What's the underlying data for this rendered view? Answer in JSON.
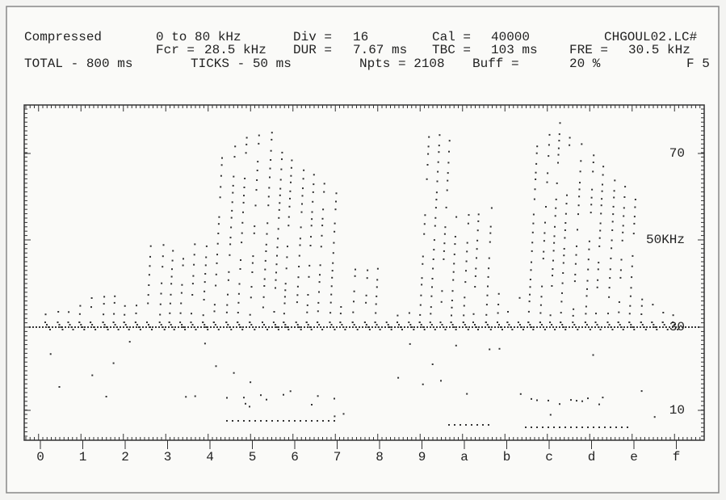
{
  "header": {
    "line1": [
      "Compressed",
      "0 to 80 kHz",
      "Div =",
      "16",
      "Cal =",
      "40000",
      "CHGOUL02.LC#"
    ],
    "line2": [
      "Fcr =",
      "28.5 kHz",
      "DUR =",
      "7.67 ms",
      "TBC =",
      "103 ms",
      "FRE =",
      "30.5 kHz"
    ],
    "line3": [
      "TOTAL - 800 ms",
      "TICKS - 50 ms",
      "Npts = 2108",
      "Buff =",
      "20 %",
      "F 5"
    ]
  },
  "x_axis_labels": [
    "0",
    "1",
    "2",
    "3",
    "4",
    "5",
    "6",
    "7",
    "8",
    "9",
    "a",
    "b",
    "c",
    "d",
    "e",
    "f"
  ],
  "y_axis_labels": [
    "70",
    "50KHz",
    "30",
    "10"
  ]
}
